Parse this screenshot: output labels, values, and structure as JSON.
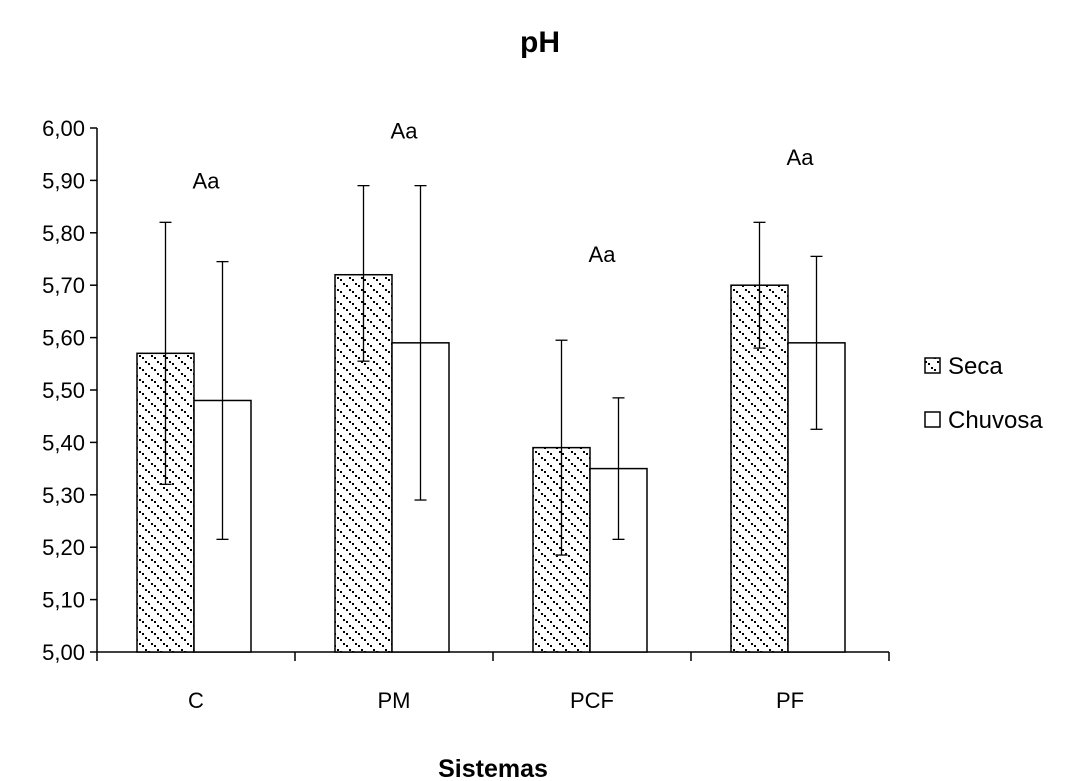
{
  "chart_data": {
    "type": "bar",
    "title": "pH",
    "xlabel": "Sistemas",
    "ylabel": "",
    "categories": [
      "C",
      "PM",
      "PCF",
      "PF"
    ],
    "ylim": [
      5.0,
      6.0
    ],
    "yticks": [
      "5,00",
      "5,10",
      "5,20",
      "5,30",
      "5,40",
      "5,50",
      "5,60",
      "5,70",
      "5,80",
      "5,90",
      "6,00"
    ],
    "series": [
      {
        "name": "Seca",
        "values": [
          5.57,
          5.72,
          5.39,
          5.7
        ],
        "err_low": [
          5.32,
          5.555,
          5.185,
          5.58
        ],
        "err_high": [
          5.82,
          5.89,
          5.595,
          5.82
        ],
        "pattern": "dotted"
      },
      {
        "name": "Chuvosa",
        "values": [
          5.48,
          5.59,
          5.35,
          5.59
        ],
        "err_low": [
          5.215,
          5.29,
          5.215,
          5.425
        ],
        "err_high": [
          5.745,
          5.89,
          5.485,
          5.755
        ],
        "pattern": "plain"
      }
    ],
    "annotations": [
      {
        "text": "Aa",
        "category": "C",
        "y": 5.9
      },
      {
        "text": "Aa",
        "category": "PM",
        "y": 5.995
      },
      {
        "text": "Aa",
        "category": "PCF",
        "y": 5.76
      },
      {
        "text": "Aa",
        "category": "PF",
        "y": 5.945
      }
    ],
    "legend": "right",
    "grid": false
  }
}
